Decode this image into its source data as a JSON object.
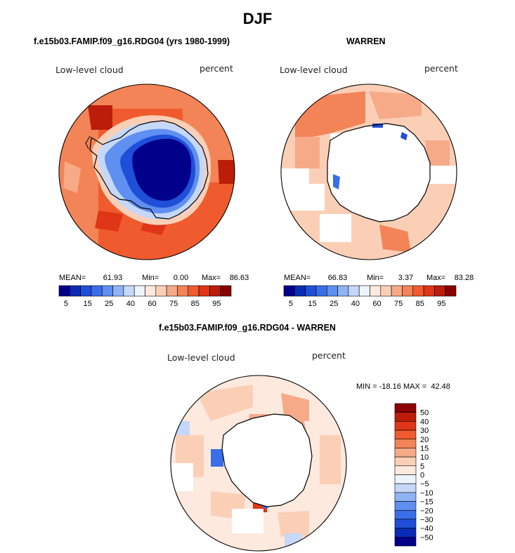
{
  "page_title": "DJF",
  "charts": {
    "left": {
      "title": "f.e15b03.FAMIP.f09_g16.RDG04 (yrs 1980-1999)",
      "variable": "Low-level cloud",
      "units": "percent",
      "stats": {
        "mean_label": "MEAN=",
        "mean": "61.93",
        "min_label": "Min=",
        "min": "0.00",
        "max_label": "Max=",
        "max": "86.63"
      }
    },
    "right": {
      "title": "WARREN",
      "variable": "Low-level cloud",
      "units": "percent",
      "stats": {
        "mean_label": "MEAN=",
        "mean": "66.83",
        "min_label": "Min=",
        "min": "3.37",
        "max_label": "Max=",
        "max": "83.28"
      }
    },
    "diff": {
      "title": "f.e15b03.FAMIP.f09_g16.RDG04 - WARREN",
      "variable": "Low-level cloud",
      "units": "percent",
      "minmax_text": "MIN = -18.16 MAX =  42.48"
    }
  },
  "abs_colorbar": {
    "colors": [
      "#00008b",
      "#0a2bb5",
      "#1f4fd8",
      "#3a6ee8",
      "#5f8ff0",
      "#8fb3f5",
      "#c5d8fa",
      "#eef4fc",
      "#fde9de",
      "#fbcfb6",
      "#f7aa88",
      "#f38457",
      "#ef5b2e",
      "#de3616",
      "#bb1d0a",
      "#8b0000"
    ],
    "tick_labels": [
      "5",
      "15",
      "25",
      "40",
      "60",
      "75",
      "85",
      "95"
    ]
  },
  "diff_colorbar": {
    "colors": [
      "#00008b",
      "#0a2bb5",
      "#1f4fd8",
      "#3a6ee8",
      "#5f8ff0",
      "#8fb3f5",
      "#c5d8fa",
      "#eef4fc",
      "#fde9de",
      "#fbcfb6",
      "#f7aa88",
      "#f38457",
      "#ef5b2e",
      "#de3616",
      "#bb1d0a",
      "#8b0000"
    ],
    "tick_labels": [
      "50",
      "40",
      "30",
      "20",
      "15",
      "10",
      "5",
      "0",
      "−5",
      "−10",
      "−15",
      "−20",
      "−30",
      "−40",
      "−50"
    ]
  },
  "chart_data": [
    {
      "type": "heatmap",
      "title": "f.e15b03.FAMIP.f09_g16.RDG04 (yrs 1980-1999)",
      "variable": "Low-level cloud",
      "units": "percent",
      "projection": "south polar stereographic",
      "mean": 61.93,
      "min": 0.0,
      "max": 86.63,
      "color_levels": [
        5,
        10,
        15,
        20,
        25,
        30,
        40,
        50,
        60,
        70,
        75,
        80,
        85,
        90,
        95
      ],
      "field": {
        "interior": 5,
        "coast": 40,
        "outer_ring": 75,
        "far_ocean": 80,
        "max_patches": 86
      }
    },
    {
      "type": "heatmap",
      "title": "WARREN",
      "variable": "Low-level cloud",
      "units": "percent",
      "projection": "south polar stereographic",
      "mean": 66.83,
      "min": 3.37,
      "max": 83.28,
      "color_levels": [
        5,
        10,
        15,
        20,
        25,
        30,
        40,
        50,
        60,
        70,
        75,
        80,
        85,
        90,
        95
      ],
      "field": {
        "interior": "missing",
        "ocean": 65,
        "max_patches": 80,
        "gaps": "missing"
      }
    },
    {
      "type": "heatmap",
      "title": "f.e15b03.FAMIP.f09_g16.RDG04 - WARREN",
      "variable": "Low-level cloud",
      "units": "percent",
      "projection": "south polar stereographic",
      "min": -18.16,
      "max": 42.48,
      "color_levels": [
        -50,
        -40,
        -30,
        -20,
        -15,
        -10,
        -5,
        0,
        5,
        10,
        15,
        20,
        30,
        40,
        50
      ],
      "field": {
        "interior": "missing",
        "ocean": 5,
        "coastal_max": 30,
        "coastal_min": -10
      }
    }
  ]
}
